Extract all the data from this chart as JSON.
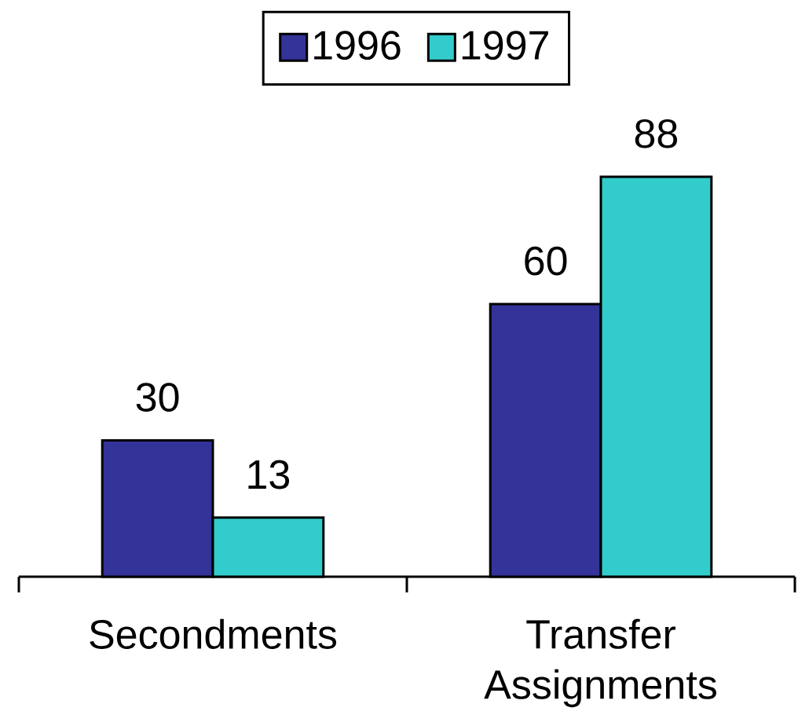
{
  "chart_data": {
    "type": "bar",
    "categories": [
      "Secondments",
      "Transfer Assignments"
    ],
    "series": [
      {
        "name": "1996",
        "color": "#333399",
        "values": [
          30,
          60
        ]
      },
      {
        "name": "1997",
        "color": "#33cccc",
        "values": [
          13,
          88
        ]
      }
    ],
    "data_labels": true,
    "legend": "top",
    "tick_labels": "x"
  }
}
